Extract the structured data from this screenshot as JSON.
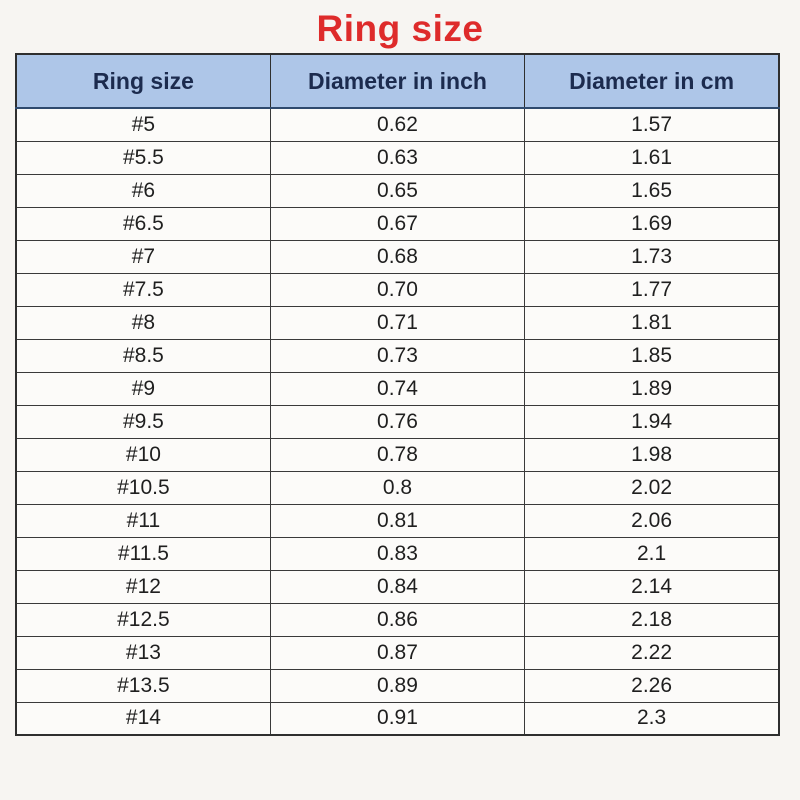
{
  "page": {
    "title": "Ring size",
    "colors": {
      "title_red": "#de2b2b",
      "header_bg": "#aec6e8",
      "header_text": "#1c2b4e",
      "border": "#3a3a3a",
      "page_bg": "#f7f5f2",
      "cell_bg": "#fcfbf9"
    }
  },
  "chart_data": {
    "type": "table",
    "title": "Ring size",
    "columns": [
      "Ring size",
      "Diameter in inch",
      "Diameter in cm"
    ],
    "rows": [
      [
        "#5",
        "0.62",
        "1.57"
      ],
      [
        "#5.5",
        "0.63",
        "1.61"
      ],
      [
        "#6",
        "0.65",
        "1.65"
      ],
      [
        "#6.5",
        "0.67",
        "1.69"
      ],
      [
        "#7",
        "0.68",
        "1.73"
      ],
      [
        "#7.5",
        "0.70",
        "1.77"
      ],
      [
        "#8",
        "0.71",
        "1.81"
      ],
      [
        "#8.5",
        "0.73",
        "1.85"
      ],
      [
        "#9",
        "0.74",
        "1.89"
      ],
      [
        "#9.5",
        "0.76",
        "1.94"
      ],
      [
        "#10",
        "0.78",
        "1.98"
      ],
      [
        "#10.5",
        "0.8",
        "2.02"
      ],
      [
        "#11",
        "0.81",
        "2.06"
      ],
      [
        "#11.5",
        "0.83",
        "2.1"
      ],
      [
        "#12",
        "0.84",
        "2.14"
      ],
      [
        "#12.5",
        "0.86",
        "2.18"
      ],
      [
        "#13",
        "0.87",
        "2.22"
      ],
      [
        "#13.5",
        "0.89",
        "2.26"
      ],
      [
        "#14",
        "0.91",
        "2.3"
      ]
    ]
  }
}
